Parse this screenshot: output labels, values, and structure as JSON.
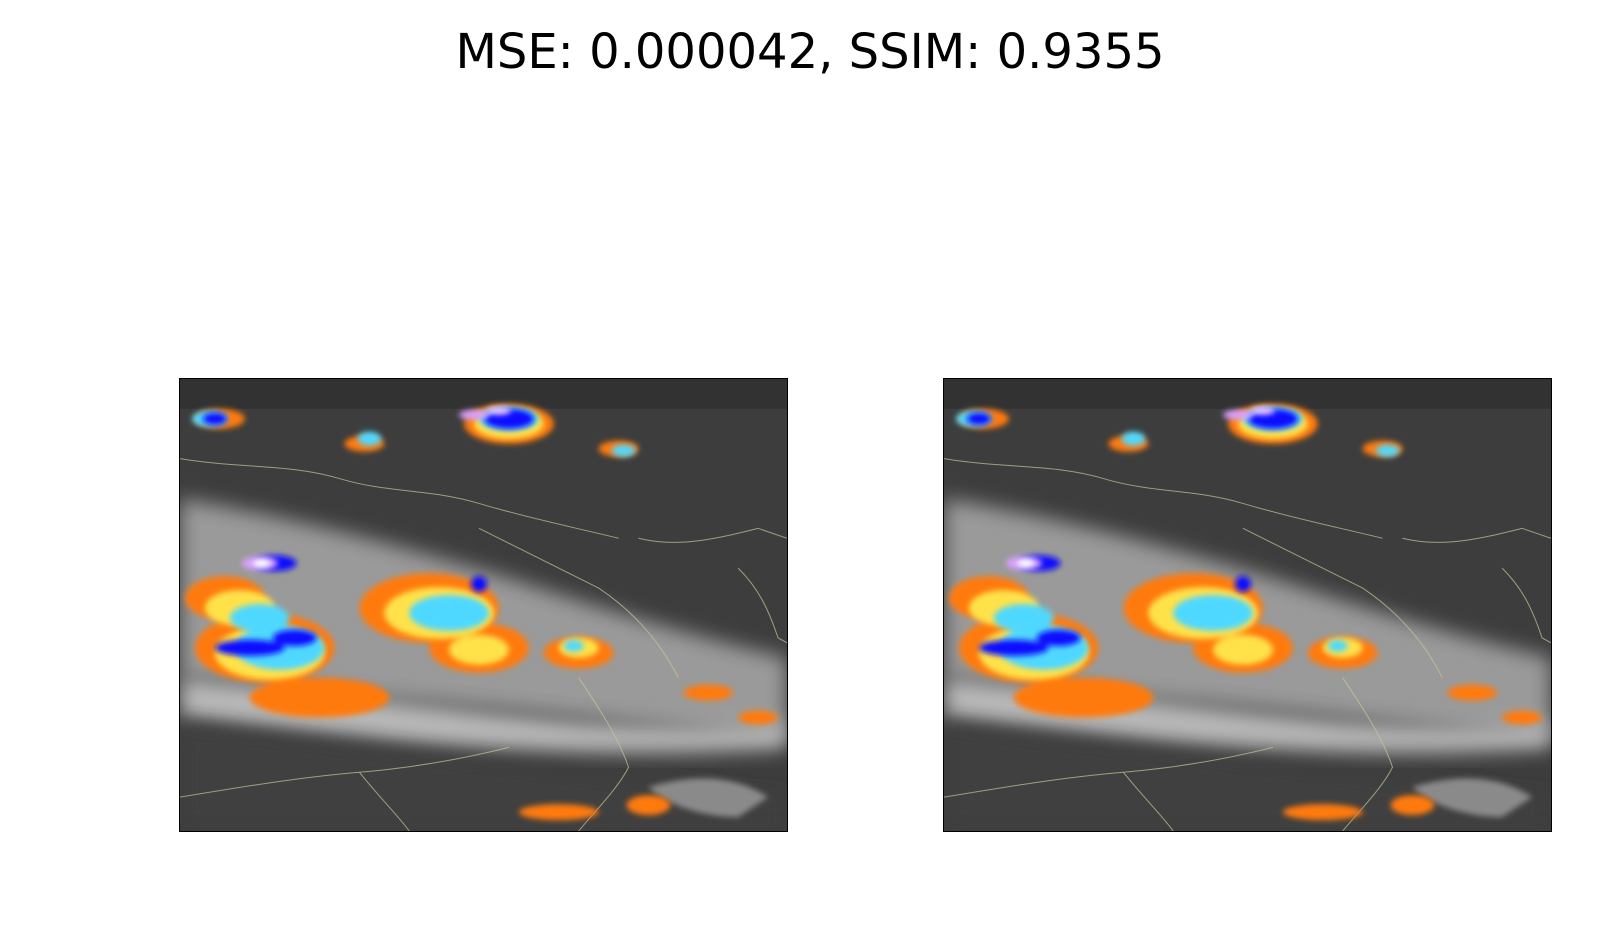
{
  "figure": {
    "title": "MSE: 0.000042, SSIM: 0.9355"
  },
  "panels": [
    {
      "name": "left",
      "colormap": [
        "#1a1a1a",
        "#808080",
        "#d8d8d8",
        "#ff6a00",
        "#ffe24a",
        "#4fd8ff",
        "#1010ff",
        "#d9a0ff"
      ]
    },
    {
      "name": "right",
      "colormap": [
        "#1a1a1a",
        "#808080",
        "#d8d8d8",
        "#ff6a00",
        "#ffe24a",
        "#4fd8ff",
        "#1010ff",
        "#d9a0ff"
      ]
    }
  ],
  "colors": {
    "background": "#ffffff",
    "border": "#000000",
    "coastline": "#c8c89a"
  }
}
